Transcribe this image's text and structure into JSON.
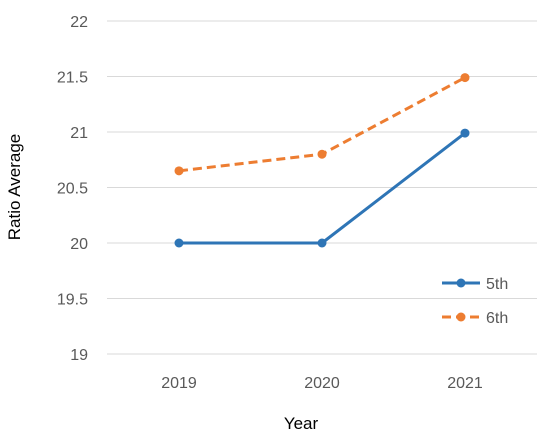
{
  "chart_data": {
    "type": "line",
    "title": "",
    "xlabel": "Year",
    "ylabel": "Ratio Average",
    "categories": [
      "2019",
      "2020",
      "2021"
    ],
    "ylim": [
      19,
      22
    ],
    "yticks": [
      "19",
      "19.5",
      "20",
      "20.5",
      "21",
      "21.5",
      "22"
    ],
    "grid": true,
    "legend_position": "right",
    "series": [
      {
        "name": "5th",
        "values": [
          20.0,
          20.0,
          20.99
        ],
        "color": "#2e75b6",
        "dash": "solid"
      },
      {
        "name": "6th",
        "values": [
          20.65,
          20.8,
          21.49
        ],
        "color": "#ed7d31",
        "dash": "dashed"
      }
    ]
  }
}
